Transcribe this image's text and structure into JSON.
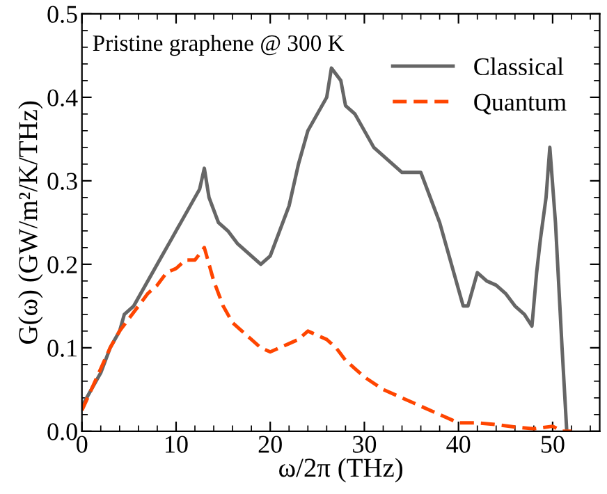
{
  "chart_data": {
    "type": "line",
    "xlabel": "ω/2π (THz)",
    "ylabel": "G(ω) (GW/m²/K/THz)",
    "annotations": [
      "Pristine graphene @ 300 K"
    ],
    "xlim": [
      0,
      55
    ],
    "xticks": [
      0,
      10,
      20,
      30,
      40,
      50
    ],
    "ylim": [
      0,
      0.5
    ],
    "yticks": [
      {
        "value": 0,
        "label": "0.0"
      },
      0.1,
      0.2,
      0.3,
      0.4,
      0.5
    ],
    "grid": false,
    "legend": "top right",
    "marker": "none",
    "series": [
      {
        "name": "Classical",
        "color": "#666666",
        "line_style": "solid",
        "x": [
          0,
          1,
          2,
          3,
          4,
          4.5,
          5.5,
          6.5,
          7.5,
          8.5,
          9.5,
          10.5,
          11.5,
          12.5,
          13,
          13.5,
          14.5,
          15.5,
          16.5,
          17.5,
          18.5,
          19,
          20,
          21,
          22,
          23,
          24,
          25,
          26,
          26.5,
          27.5,
          28,
          29,
          30,
          31,
          32,
          33,
          34,
          35,
          36,
          37,
          38,
          39,
          40,
          40.5,
          41,
          42,
          43,
          44,
          45,
          46,
          47,
          47.8,
          48.3,
          48.7,
          49.3,
          49.7,
          50.3,
          51,
          51.5
        ],
        "values": [
          0.03,
          0.05,
          0.07,
          0.1,
          0.12,
          0.14,
          0.15,
          0.17,
          0.19,
          0.21,
          0.23,
          0.25,
          0.27,
          0.29,
          0.315,
          0.28,
          0.25,
          0.24,
          0.225,
          0.215,
          0.205,
          0.2,
          0.21,
          0.24,
          0.27,
          0.32,
          0.36,
          0.38,
          0.4,
          0.435,
          0.42,
          0.39,
          0.38,
          0.36,
          0.34,
          0.33,
          0.32,
          0.31,
          0.31,
          0.31,
          0.28,
          0.25,
          0.21,
          0.17,
          0.15,
          0.15,
          0.19,
          0.18,
          0.175,
          0.165,
          0.15,
          0.14,
          0.126,
          0.19,
          0.23,
          0.28,
          0.34,
          0.25,
          0.1,
          0.0
        ]
      },
      {
        "name": "Quantum",
        "color": "#ff4500",
        "line_style": "dashed",
        "x": [
          0,
          1,
          2,
          3,
          4,
          5,
          6,
          7,
          8,
          9,
          10,
          11,
          12,
          13,
          14,
          15,
          16,
          17,
          18,
          19,
          20,
          21,
          22,
          23,
          24,
          25,
          26,
          27,
          28,
          29,
          30,
          32,
          34,
          36,
          38,
          40,
          42,
          44,
          46,
          48,
          50,
          51,
          52
        ],
        "values": [
          0.025,
          0.05,
          0.075,
          0.1,
          0.12,
          0.135,
          0.15,
          0.165,
          0.175,
          0.19,
          0.195,
          0.205,
          0.205,
          0.22,
          0.18,
          0.15,
          0.13,
          0.12,
          0.11,
          0.1,
          0.095,
          0.1,
          0.105,
          0.11,
          0.12,
          0.115,
          0.11,
          0.1,
          0.085,
          0.075,
          0.065,
          0.05,
          0.04,
          0.03,
          0.02,
          0.01,
          0.01,
          0.008,
          0.005,
          0.003,
          0.006,
          0.0,
          0.0
        ]
      }
    ]
  }
}
